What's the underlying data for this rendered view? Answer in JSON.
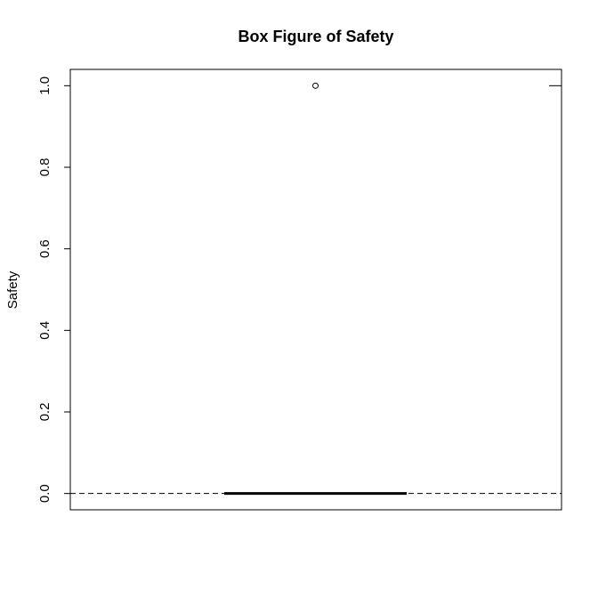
{
  "chart_data": {
    "type": "box",
    "title": "Box Figure of Safety",
    "ylabel": "Safety",
    "ylim": [
      -0.04,
      1.04
    ],
    "yticks": [
      0.0,
      0.2,
      0.4,
      0.6,
      0.8,
      1.0
    ],
    "ytick_labels": [
      "0.0",
      "0.2",
      "0.4",
      "0.6",
      "0.8",
      "1.0"
    ],
    "series": [
      {
        "min": 0.0,
        "q1": 0.0,
        "median": 0.0,
        "q3": 0.0,
        "max": 0.0,
        "outliers": [
          1.0
        ]
      }
    ],
    "reference_lines": [
      0.0,
      1.0
    ],
    "colors": {
      "line": "#000000",
      "background": "#ffffff"
    }
  }
}
